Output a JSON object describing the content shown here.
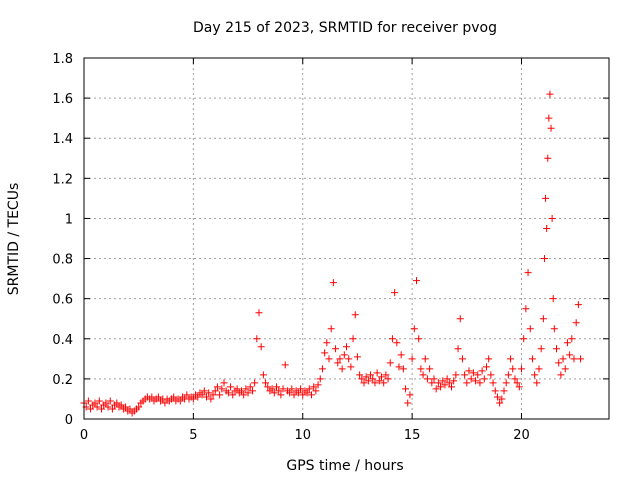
{
  "chart_data": {
    "type": "scatter",
    "title": "Day 215 of 2023, SRMTID for receiver pvog",
    "xlabel": "GPS time / hours",
    "ylabel": "SRMTID / TECUs",
    "xlim": [
      0,
      24
    ],
    "ylim": [
      0,
      1.8
    ],
    "xticks": [
      0,
      5,
      10,
      15,
      20
    ],
    "yticks": [
      0,
      0.2,
      0.4,
      0.6,
      0.8,
      1,
      1.2,
      1.4,
      1.6,
      1.8
    ],
    "grid": true,
    "marker": "plus",
    "color": "#ff0000",
    "series": [
      {
        "name": "SRMTID",
        "points": [
          [
            0.0,
            0.08
          ],
          [
            0.1,
            0.06
          ],
          [
            0.2,
            0.09
          ],
          [
            0.3,
            0.05
          ],
          [
            0.4,
            0.07
          ],
          [
            0.5,
            0.08
          ],
          [
            0.6,
            0.06
          ],
          [
            0.7,
            0.09
          ],
          [
            0.8,
            0.05
          ],
          [
            0.9,
            0.07
          ],
          [
            1.0,
            0.08
          ],
          [
            1.1,
            0.06
          ],
          [
            1.2,
            0.09
          ],
          [
            1.3,
            0.05
          ],
          [
            1.4,
            0.07
          ],
          [
            1.5,
            0.08
          ],
          [
            1.6,
            0.06
          ],
          [
            1.7,
            0.07
          ],
          [
            1.8,
            0.05
          ],
          [
            1.9,
            0.06
          ],
          [
            2.0,
            0.04
          ],
          [
            2.1,
            0.05
          ],
          [
            2.2,
            0.03
          ],
          [
            2.3,
            0.04
          ],
          [
            2.4,
            0.05
          ],
          [
            2.5,
            0.06
          ],
          [
            2.6,
            0.08
          ],
          [
            2.7,
            0.09
          ],
          [
            2.8,
            0.1
          ],
          [
            2.9,
            0.11
          ],
          [
            3.0,
            0.1
          ],
          [
            3.1,
            0.11
          ],
          [
            3.2,
            0.09
          ],
          [
            3.3,
            0.1
          ],
          [
            3.4,
            0.11
          ],
          [
            3.5,
            0.09
          ],
          [
            3.6,
            0.1
          ],
          [
            3.7,
            0.08
          ],
          [
            3.8,
            0.1
          ],
          [
            3.9,
            0.09
          ],
          [
            4.0,
            0.1
          ],
          [
            4.1,
            0.11
          ],
          [
            4.2,
            0.09
          ],
          [
            4.3,
            0.1
          ],
          [
            4.4,
            0.09
          ],
          [
            4.5,
            0.11
          ],
          [
            4.6,
            0.1
          ],
          [
            4.7,
            0.12
          ],
          [
            4.8,
            0.1
          ],
          [
            4.9,
            0.11
          ],
          [
            5.0,
            0.1
          ],
          [
            5.1,
            0.12
          ],
          [
            5.2,
            0.11
          ],
          [
            5.3,
            0.13
          ],
          [
            5.4,
            0.12
          ],
          [
            5.5,
            0.14
          ],
          [
            5.6,
            0.11
          ],
          [
            5.7,
            0.13
          ],
          [
            5.8,
            0.1
          ],
          [
            5.9,
            0.12
          ],
          [
            6.0,
            0.14
          ],
          [
            6.1,
            0.16
          ],
          [
            6.2,
            0.12
          ],
          [
            6.3,
            0.15
          ],
          [
            6.4,
            0.18
          ],
          [
            6.5,
            0.14
          ],
          [
            6.6,
            0.13
          ],
          [
            6.7,
            0.16
          ],
          [
            6.8,
            0.12
          ],
          [
            6.9,
            0.14
          ],
          [
            7.0,
            0.15
          ],
          [
            7.1,
            0.13
          ],
          [
            7.2,
            0.14
          ],
          [
            7.3,
            0.12
          ],
          [
            7.4,
            0.15
          ],
          [
            7.5,
            0.13
          ],
          [
            7.6,
            0.16
          ],
          [
            7.7,
            0.14
          ],
          [
            7.8,
            0.18
          ],
          [
            7.9,
            0.4
          ],
          [
            8.0,
            0.53
          ],
          [
            8.1,
            0.36
          ],
          [
            8.2,
            0.22
          ],
          [
            8.3,
            0.18
          ],
          [
            8.4,
            0.16
          ],
          [
            8.5,
            0.14
          ],
          [
            8.6,
            0.15
          ],
          [
            8.7,
            0.13
          ],
          [
            8.8,
            0.16
          ],
          [
            8.9,
            0.14
          ],
          [
            9.0,
            0.12
          ],
          [
            9.1,
            0.15
          ],
          [
            9.2,
            0.27
          ],
          [
            9.3,
            0.14
          ],
          [
            9.4,
            0.13
          ],
          [
            9.5,
            0.15
          ],
          [
            9.6,
            0.12
          ],
          [
            9.7,
            0.14
          ],
          [
            9.8,
            0.13
          ],
          [
            9.9,
            0.15
          ],
          [
            10.0,
            0.12
          ],
          [
            10.1,
            0.14
          ],
          [
            10.2,
            0.13
          ],
          [
            10.3,
            0.15
          ],
          [
            10.4,
            0.12
          ],
          [
            10.5,
            0.16
          ],
          [
            10.6,
            0.14
          ],
          [
            10.7,
            0.17
          ],
          [
            10.8,
            0.2
          ],
          [
            10.9,
            0.25
          ],
          [
            11.0,
            0.33
          ],
          [
            11.1,
            0.38
          ],
          [
            11.2,
            0.3
          ],
          [
            11.3,
            0.45
          ],
          [
            11.4,
            0.68
          ],
          [
            11.5,
            0.35
          ],
          [
            11.6,
            0.28
          ],
          [
            11.7,
            0.3
          ],
          [
            11.8,
            0.25
          ],
          [
            11.9,
            0.32
          ],
          [
            12.0,
            0.36
          ],
          [
            12.1,
            0.3
          ],
          [
            12.2,
            0.26
          ],
          [
            12.3,
            0.4
          ],
          [
            12.4,
            0.52
          ],
          [
            12.5,
            0.31
          ],
          [
            12.6,
            0.22
          ],
          [
            12.7,
            0.2
          ],
          [
            12.8,
            0.18
          ],
          [
            12.9,
            0.21
          ],
          [
            13.0,
            0.19
          ],
          [
            13.1,
            0.22
          ],
          [
            13.2,
            0.2
          ],
          [
            13.3,
            0.18
          ],
          [
            13.4,
            0.23
          ],
          [
            13.5,
            0.19
          ],
          [
            13.6,
            0.21
          ],
          [
            13.7,
            0.18
          ],
          [
            13.8,
            0.22
          ],
          [
            13.9,
            0.2
          ],
          [
            14.0,
            0.28
          ],
          [
            14.1,
            0.4
          ],
          [
            14.2,
            0.63
          ],
          [
            14.3,
            0.38
          ],
          [
            14.4,
            0.26
          ],
          [
            14.5,
            0.32
          ],
          [
            14.6,
            0.25
          ],
          [
            14.7,
            0.15
          ],
          [
            14.8,
            0.08
          ],
          [
            14.9,
            0.12
          ],
          [
            15.0,
            0.3
          ],
          [
            15.1,
            0.45
          ],
          [
            15.2,
            0.69
          ],
          [
            15.3,
            0.4
          ],
          [
            15.4,
            0.25
          ],
          [
            15.5,
            0.22
          ],
          [
            15.6,
            0.3
          ],
          [
            15.7,
            0.2
          ],
          [
            15.8,
            0.25
          ],
          [
            15.9,
            0.18
          ],
          [
            16.0,
            0.2
          ],
          [
            16.1,
            0.15
          ],
          [
            16.2,
            0.18
          ],
          [
            16.3,
            0.16
          ],
          [
            16.4,
            0.19
          ],
          [
            16.5,
            0.17
          ],
          [
            16.6,
            0.2
          ],
          [
            16.7,
            0.18
          ],
          [
            16.8,
            0.16
          ],
          [
            16.9,
            0.19
          ],
          [
            17.0,
            0.22
          ],
          [
            17.1,
            0.35
          ],
          [
            17.2,
            0.5
          ],
          [
            17.3,
            0.3
          ],
          [
            17.4,
            0.22
          ],
          [
            17.5,
            0.18
          ],
          [
            17.6,
            0.24
          ],
          [
            17.7,
            0.2
          ],
          [
            17.8,
            0.23
          ],
          [
            17.9,
            0.19
          ],
          [
            18.0,
            0.22
          ],
          [
            18.1,
            0.18
          ],
          [
            18.2,
            0.24
          ],
          [
            18.3,
            0.2
          ],
          [
            18.4,
            0.26
          ],
          [
            18.5,
            0.3
          ],
          [
            18.6,
            0.22
          ],
          [
            18.7,
            0.18
          ],
          [
            18.8,
            0.14
          ],
          [
            18.9,
            0.11
          ],
          [
            19.0,
            0.08
          ],
          [
            19.1,
            0.1
          ],
          [
            19.2,
            0.14
          ],
          [
            19.3,
            0.18
          ],
          [
            19.4,
            0.22
          ],
          [
            19.5,
            0.3
          ],
          [
            19.6,
            0.25
          ],
          [
            19.7,
            0.2
          ],
          [
            19.8,
            0.18
          ],
          [
            19.9,
            0.16
          ],
          [
            20.0,
            0.25
          ],
          [
            20.1,
            0.4
          ],
          [
            20.2,
            0.55
          ],
          [
            20.3,
            0.73
          ],
          [
            20.4,
            0.45
          ],
          [
            20.5,
            0.3
          ],
          [
            20.6,
            0.22
          ],
          [
            20.7,
            0.18
          ],
          [
            20.8,
            0.25
          ],
          [
            20.9,
            0.35
          ],
          [
            21.0,
            0.5
          ],
          [
            21.05,
            0.8
          ],
          [
            21.1,
            1.1
          ],
          [
            21.15,
            0.95
          ],
          [
            21.2,
            1.3
          ],
          [
            21.25,
            1.5
          ],
          [
            21.3,
            1.62
          ],
          [
            21.35,
            1.45
          ],
          [
            21.4,
            1.0
          ],
          [
            21.45,
            0.6
          ],
          [
            21.5,
            0.45
          ],
          [
            21.6,
            0.35
          ],
          [
            21.7,
            0.28
          ],
          [
            21.8,
            0.22
          ],
          [
            21.9,
            0.3
          ],
          [
            22.0,
            0.25
          ],
          [
            22.1,
            0.38
          ],
          [
            22.2,
            0.32
          ],
          [
            22.3,
            0.4
          ],
          [
            22.4,
            0.3
          ],
          [
            22.5,
            0.48
          ],
          [
            22.6,
            0.57
          ],
          [
            22.7,
            0.3
          ]
        ]
      }
    ]
  }
}
